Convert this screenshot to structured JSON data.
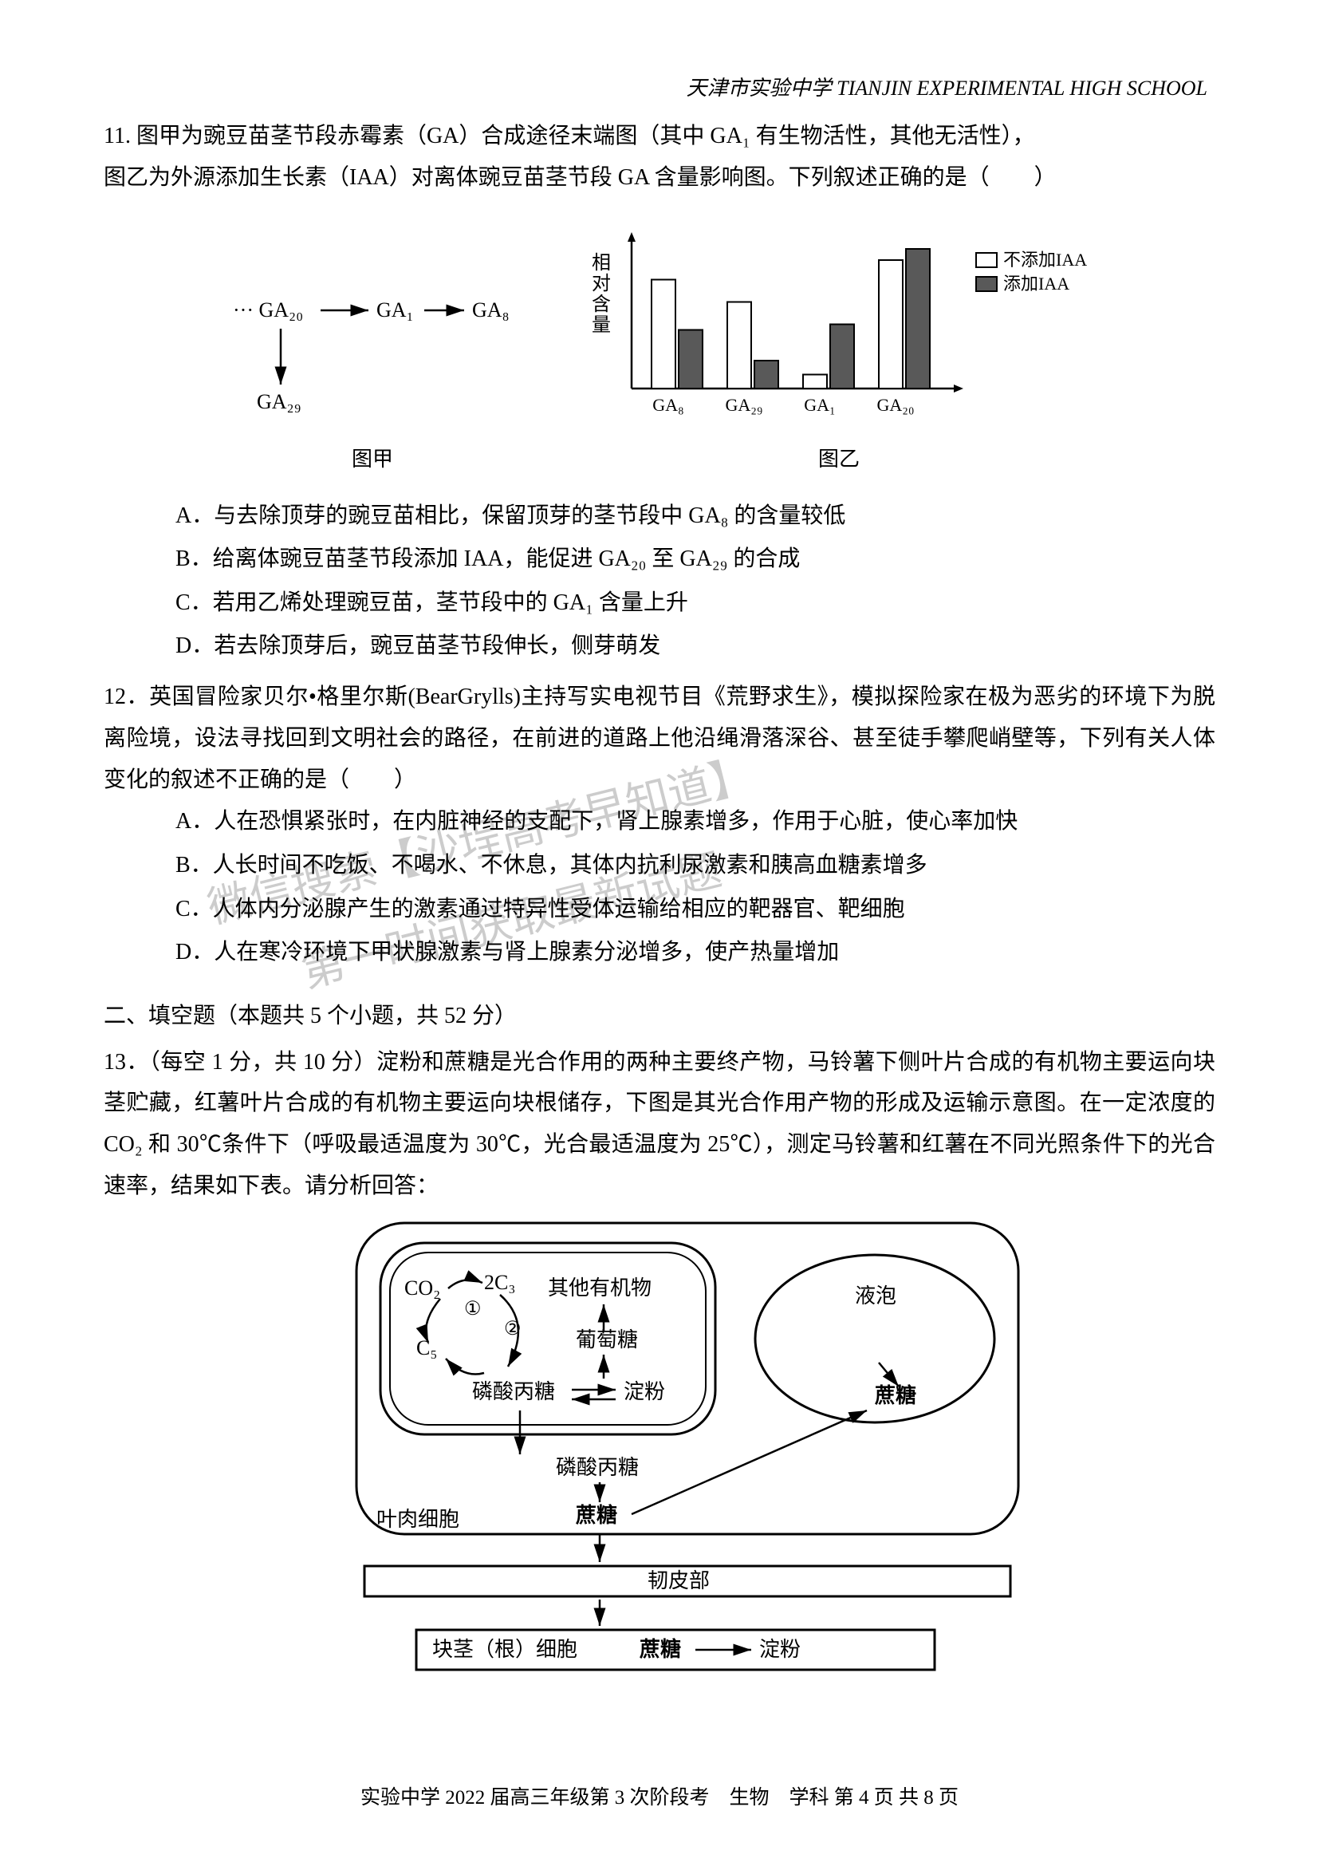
{
  "header": {
    "text": "天津市实验中学 TIANJIN EXPERIMENTAL HIGH SCHOOL"
  },
  "q11": {
    "stem_line1": "11. 图甲为豌豆苗茎节段赤霉素（GA）合成途径末端图（其中 GA₁ 有生物活性，其他无活性），",
    "stem_line2": "图乙为外源添加生长素（IAA）对离体豌豆苗茎节段 GA 含量影响图。下列叙述正确的是（　　）",
    "fig_jia": {
      "caption": "图甲",
      "nodes": {
        "n1": "··· GA₂₀",
        "n2": "GA₁",
        "n3": "GA₈",
        "n4": "GA₂₉"
      }
    },
    "fig_yi": {
      "caption": "图乙",
      "ylabel": "相对含量",
      "legend": {
        "a": "不添加IAA",
        "b": "添加IAA"
      },
      "categories": [
        "GA₈",
        "GA₂₉",
        "GA₁",
        "GA₂₀"
      ],
      "series_noIAA": [
        0.78,
        0.62,
        0.1,
        0.92
      ],
      "series_IAA": [
        0.42,
        0.2,
        0.46,
        1.0
      ],
      "colors": {
        "noIAA": "#ffffff",
        "IAA": "#595959",
        "border": "#000000",
        "axis": "#000000"
      }
    },
    "options": {
      "A": "A．与去除顶芽的豌豆苗相比，保留顶芽的茎节段中 GA₈ 的含量较低",
      "B": "B．给离体豌豆苗茎节段添加 IAA，能促进 GA₂₀ 至 GA₂₉ 的合成",
      "C": "C．若用乙烯处理豌豆苗，茎节段中的 GA₁ 含量上升",
      "D": "D．若去除顶芽后，豌豆苗茎节段伸长，侧芽萌发"
    }
  },
  "q12": {
    "stem": "12．英国冒险家贝尔•格里尔斯(BearGrylls)主持写实电视节目《荒野求生》，模拟探险家在极为恶劣的环境下为脱离险境，设法寻找回到文明社会的路径，在前进的道路上他沿绳滑落深谷、甚至徒手攀爬峭壁等，下列有关人体变化的叙述不正确的是（　　）",
    "options": {
      "A": "A．人在恐惧紧张时，在内脏神经的支配下，肾上腺素增多，作用于心脏，使心率加快",
      "B": "B．人长时间不吃饭、不喝水、不休息，其体内抗利尿激素和胰高血糖素增多",
      "C": "C．人体内分泌腺产生的激素通过特异性受体运输给相应的靶器官、靶细胞",
      "D": "D．人在寒冷环境下甲状腺激素与肾上腺素分泌增多，使产热量增加"
    }
  },
  "section2_heading": "二、填空题（本题共 5 个小题，共 52 分）",
  "q13": {
    "stem": "13．（每空 1 分，共 10 分）淀粉和蔗糖是光合作用的两种主要终产物，马铃薯下侧叶片合成的有机物主要运向块茎贮藏，红薯叶片合成的有机物主要运向块根储存，下图是其光合作用产物的形成及运输示意图。在一定浓度的CO₂ 和 30℃条件下（呼吸最适温度为 30℃，光合最适温度为 25℃），测定马铃薯和红薯在不同光照条件下的光合速率，结果如下表。请分析回答：",
    "labels": {
      "co2": "CO₂",
      "c3": "2C₃",
      "c5": "C₅",
      "step1": "①",
      "step2": "②",
      "other": "其他有机物",
      "glucose": "葡萄糖",
      "tp_in": "磷酸丙糖",
      "starch_in": "淀粉",
      "tp_out": "磷酸丙糖",
      "sucrose_cell": "蔗糖",
      "mesophyll": "叶肉细胞",
      "vacuole": "液泡",
      "sucrose_vac": "蔗糖",
      "phloem": "韧皮部",
      "tuber": "块茎（根）细胞",
      "sucrose_tuber": "蔗糖",
      "starch_tuber": "淀粉"
    }
  },
  "watermark": {
    "l1": "微信搜索【沙埕高考早知道】",
    "l2": "第一时间获取最新试题"
  },
  "footer": {
    "text": "实验中学 2022 届高三年级第 3 次阶段考　生物　学科 第 4 页 共 8 页"
  }
}
